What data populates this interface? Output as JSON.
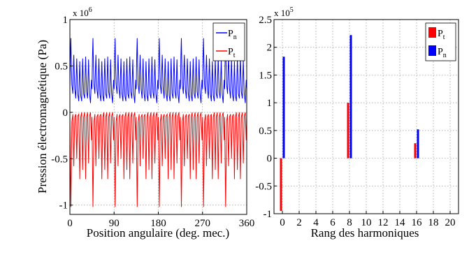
{
  "chart_data": [
    {
      "type": "line",
      "xlabel": "Position angulaire (deg. mec.)",
      "ylabel": "Pression électromagnétique (Pa)",
      "y_multiplier": {
        "base": "x 10",
        "exponent": "6"
      },
      "xlim": [
        0,
        360
      ],
      "ylim": [
        -1.1,
        1
      ],
      "xticks": [
        0,
        90,
        180,
        270,
        360
      ],
      "xtick_labels": [
        "0",
        "90",
        "180",
        "270",
        "360"
      ],
      "yticks": [
        -1,
        -0.5,
        0,
        0.5,
        1
      ],
      "ytick_labels": [
        "-1",
        "-0.5",
        "0",
        "0.5",
        "1"
      ],
      "grid": true,
      "legend_placement": "top-right",
      "series": [
        {
          "name": "P_n",
          "legend_main": "P",
          "legend_sub": "n",
          "color": "#0000ff",
          "pattern_period_deg": 45,
          "pattern": {
            "x": [
              0,
              1,
              2,
              3,
              4,
              6,
              7,
              8,
              9,
              10,
              12,
              13,
              14,
              15,
              16,
              18,
              19,
              20,
              21,
              22,
              24,
              25,
              26,
              27,
              28,
              30,
              31,
              32,
              33,
              34,
              36,
              37,
              38,
              39,
              40,
              42,
              43,
              44,
              45
            ],
            "y": [
              0.25,
              0.6,
              0.8,
              0.5,
              0.3,
              0.2,
              0.45,
              0.62,
              0.42,
              0.25,
              0.15,
              0.4,
              0.58,
              0.38,
              0.2,
              0.12,
              0.35,
              0.55,
              0.35,
              0.18,
              0.12,
              0.38,
              0.58,
              0.38,
              0.2,
              0.15,
              0.4,
              0.6,
              0.4,
              0.22,
              0.15,
              0.38,
              0.57,
              0.36,
              0.2,
              0.1,
              0.25,
              0.35,
              0.25
            ]
          }
        },
        {
          "name": "P_t",
          "legend_main": "P",
          "legend_sub": "t",
          "color": "#ff0000",
          "pattern_period_deg": 45,
          "pattern": {
            "x": [
              0,
              1,
              2,
              3,
              4,
              6,
              7,
              8,
              9,
              10,
              12,
              13,
              14,
              15,
              16,
              18,
              19,
              20,
              21,
              22,
              24,
              25,
              26,
              27,
              28,
              30,
              31,
              32,
              33,
              34,
              36,
              37,
              38,
              39,
              40,
              42,
              43,
              44,
              45
            ],
            "y": [
              -0.05,
              -0.55,
              -1.02,
              -0.6,
              -0.1,
              -0.02,
              -0.3,
              -0.58,
              -0.3,
              -0.05,
              -0.02,
              -0.25,
              -0.5,
              -0.25,
              -0.04,
              -0.02,
              -0.35,
              -0.72,
              -0.35,
              -0.05,
              0.0,
              -0.3,
              -0.62,
              -0.3,
              -0.05,
              0.0,
              -0.35,
              -0.72,
              -0.35,
              -0.05,
              0.0,
              -0.3,
              -0.55,
              -0.28,
              -0.04,
              0.0,
              -0.15,
              -0.3,
              -0.05
            ]
          }
        }
      ]
    },
    {
      "type": "bar",
      "xlabel": "Rang des harmoniques",
      "y_multiplier": {
        "base": "x 10",
        "exponent": "5"
      },
      "xlim": [
        -1,
        21
      ],
      "ylim": [
        -1,
        2.5
      ],
      "xticks": [
        0,
        2,
        4,
        6,
        8,
        10,
        12,
        14,
        16,
        18,
        20
      ],
      "xtick_labels": [
        "0",
        "2",
        "4",
        "6",
        "8",
        "10",
        "12",
        "14",
        "16",
        "18",
        "20"
      ],
      "yticks": [
        -1,
        -0.5,
        0,
        0.5,
        1,
        1.5,
        2,
        2.5
      ],
      "ytick_labels": [
        "-1",
        "-0.5",
        "0",
        "0.5",
        "1",
        "1.5",
        "2",
        "2.5"
      ],
      "grid": true,
      "legend_placement": "top-right",
      "categories": [
        0,
        8,
        16
      ],
      "series": [
        {
          "name": "P_t",
          "legend_main": "P",
          "legend_sub": "t",
          "color": "#ff0000",
          "values": [
            -0.95,
            1.0,
            0.27
          ]
        },
        {
          "name": "P_n",
          "legend_main": "P",
          "legend_sub": "n",
          "color": "#0000ff",
          "values": [
            1.83,
            2.22,
            0.52
          ]
        }
      ]
    }
  ]
}
